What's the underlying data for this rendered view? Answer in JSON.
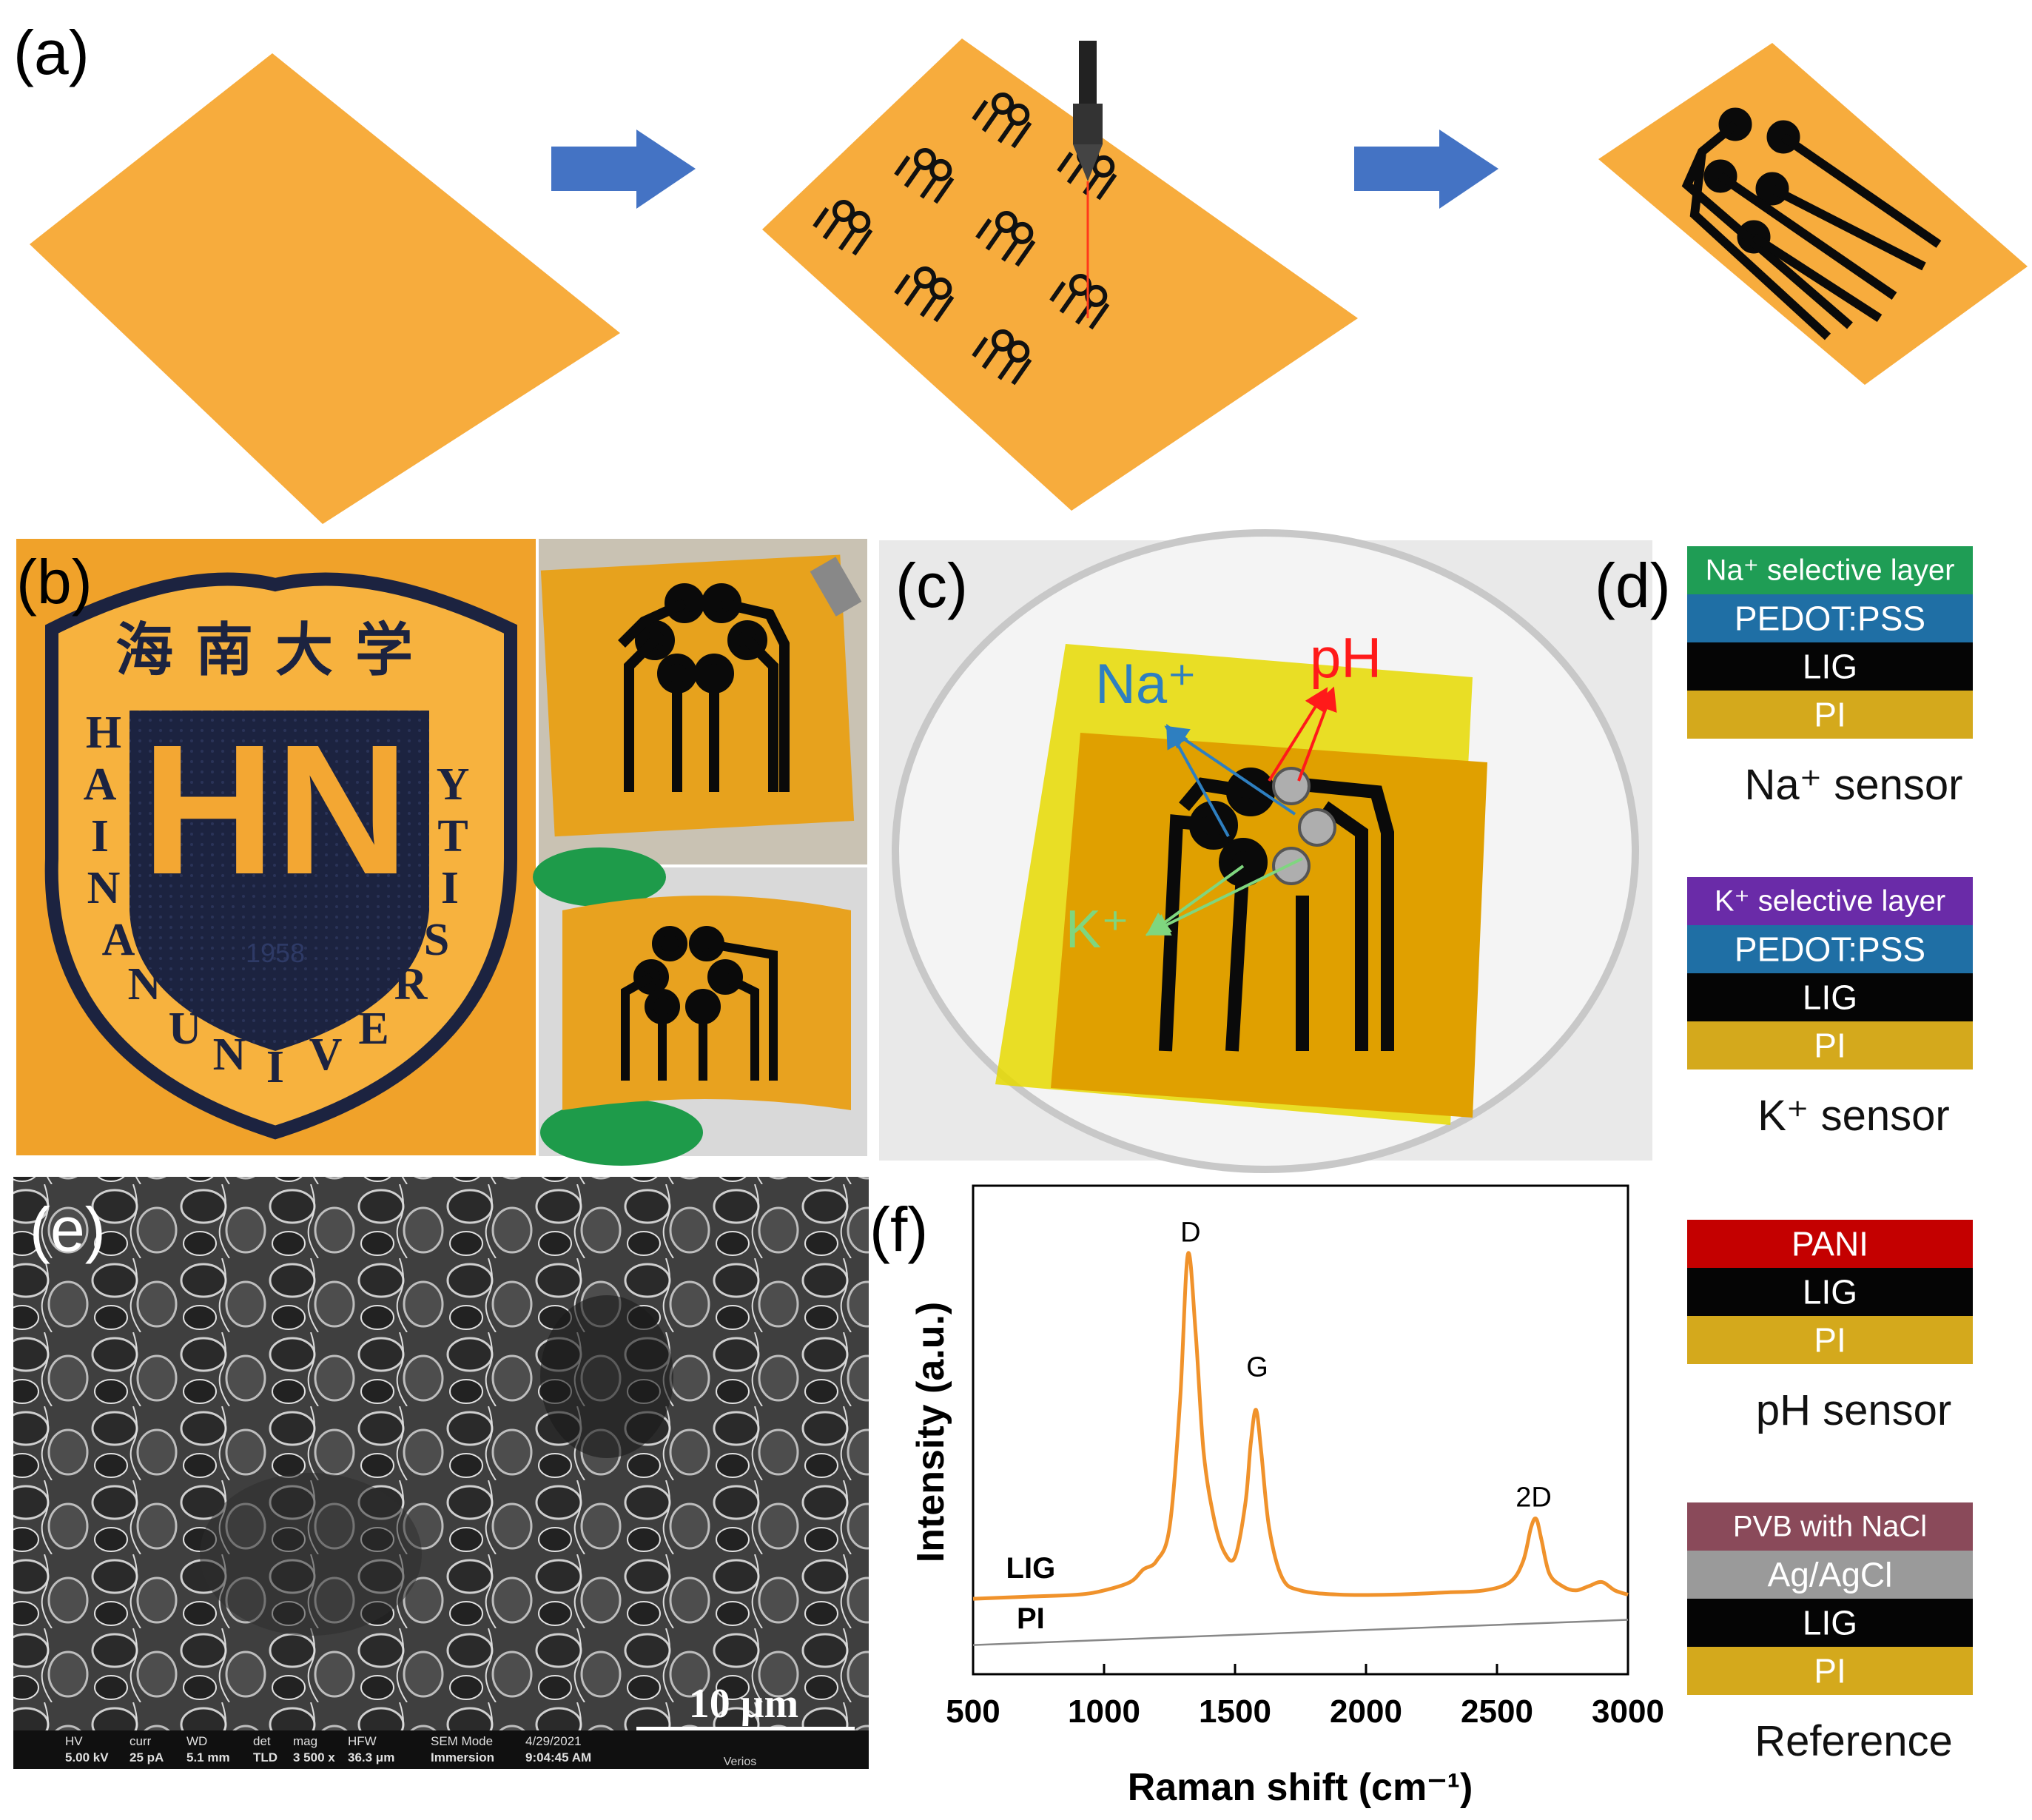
{
  "panels": {
    "a": {
      "label": "(a)"
    },
    "b": {
      "label": "(b)"
    },
    "c": {
      "label": "(c)"
    },
    "d": {
      "label": "(d)"
    },
    "e": {
      "label": "(e)"
    },
    "f": {
      "label": "(f)"
    }
  },
  "logo": {
    "chinese": "海南大学",
    "letters": [
      "H",
      "A",
      "I",
      "N",
      "A",
      "N",
      "U",
      "N",
      "I",
      "V",
      "E",
      "R",
      "S",
      "I",
      "T",
      "Y"
    ],
    "year": "1958"
  },
  "photo_c": {
    "na_label": "Na⁺",
    "ph_label": "pH",
    "k_label": "K⁺"
  },
  "stacks": [
    {
      "caption": "Na⁺ sensor",
      "layers": [
        {
          "text": "Na⁺ selective layer",
          "color": "#1f9d55"
        },
        {
          "text": "PEDOT:PSS",
          "color": "#1f6fa5"
        },
        {
          "text": "LIG",
          "color": "#050505"
        },
        {
          "text": "PI",
          "color": "#d4a91c"
        }
      ]
    },
    {
      "caption": "K⁺ sensor",
      "layers": [
        {
          "text": "K⁺ selective layer",
          "color": "#6a2ba8"
        },
        {
          "text": "PEDOT:PSS",
          "color": "#1f6fa5"
        },
        {
          "text": "LIG",
          "color": "#050505"
        },
        {
          "text": "PI",
          "color": "#d4a91c"
        }
      ]
    },
    {
      "caption": "pH sensor",
      "layers": [
        {
          "text": "PANI",
          "color": "#c40000"
        },
        {
          "text": "LIG",
          "color": "#050505"
        },
        {
          "text": "PI",
          "color": "#d4a91c"
        }
      ]
    },
    {
      "caption": "Reference",
      "layers": [
        {
          "text": "PVB with NaCl",
          "color": "#8a4a5a"
        },
        {
          "text": "Ag/AgCl",
          "color": "#9a9a9a"
        },
        {
          "text": "LIG",
          "color": "#050505"
        },
        {
          "text": "PI",
          "color": "#d4a91c"
        }
      ]
    }
  ],
  "sem": {
    "scale_bar": "10 μm",
    "info_headers": [
      "HV",
      "curr",
      "WD",
      "det",
      "mag",
      "HFW",
      "SEM Mode",
      "4/29/2021"
    ],
    "info_values": [
      "5.00 kV",
      "25 pA",
      "5.1 mm",
      "TLD",
      "3 500 x",
      "36.3 μm",
      "Immersion",
      "9:04:45 AM"
    ],
    "instrument": "Verios"
  },
  "chart_data": {
    "type": "line",
    "xlabel": "Raman shift (cm⁻¹)",
    "ylabel": "Intensity (a.u.)",
    "xlim": [
      500,
      3000
    ],
    "xticks": [
      500,
      1000,
      1500,
      2000,
      2500,
      3000
    ],
    "ylim": [
      0,
      100
    ],
    "yticks_shown": false,
    "grid": false,
    "series": [
      {
        "name": "LIG",
        "color": "#f0922b",
        "x": [
          500,
          700,
          900,
          1000,
          1100,
          1150,
          1200,
          1250,
          1290,
          1320,
          1350,
          1380,
          1420,
          1460,
          1500,
          1540,
          1560,
          1580,
          1600,
          1630,
          1680,
          1750,
          1900,
          2100,
          2300,
          2450,
          2550,
          2600,
          2630,
          2650,
          2670,
          2700,
          2750,
          2800,
          2850,
          2900,
          2950,
          3000
        ],
        "y": [
          11,
          11.5,
          12,
          13,
          15,
          18,
          20,
          28,
          58,
          93,
          74,
          46,
          30,
          22,
          21,
          34,
          48,
          56,
          46,
          28,
          16,
          13,
          12,
          12,
          12.5,
          13,
          15,
          20,
          28,
          30,
          25,
          17,
          14,
          13,
          14,
          15,
          13,
          12
        ]
      },
      {
        "name": "PI",
        "color": "#888888",
        "x": [
          500,
          3000
        ],
        "y": [
          0,
          6
        ]
      }
    ],
    "annotations": [
      {
        "text": "D",
        "x": 1330,
        "y": 96
      },
      {
        "text": "G",
        "x": 1585,
        "y": 64
      },
      {
        "text": "2D",
        "x": 2640,
        "y": 33
      },
      {
        "text": "LIG",
        "x": 720,
        "y": 16
      },
      {
        "text": "PI",
        "x": 720,
        "y": 4
      }
    ]
  }
}
